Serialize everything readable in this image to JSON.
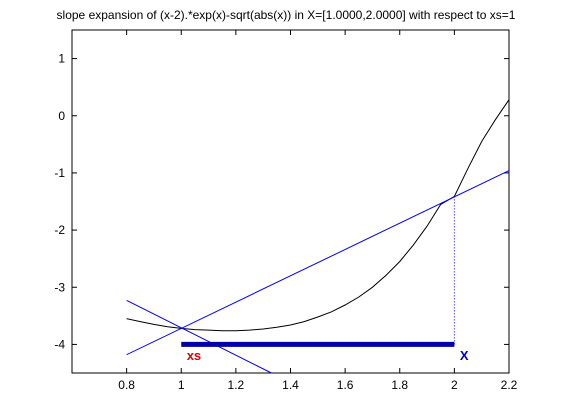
{
  "chart_data": {
    "type": "line",
    "title": "slope expansion of (x-2).*exp(x)-sqrt(abs(x)) in X=[1.0000,2.0000] with respect to xs=1",
    "xlabel": "",
    "ylabel": "",
    "xlim": [
      0.6,
      2.2
    ],
    "ylim": [
      -4.5,
      1.5
    ],
    "x_ticks": [
      0.8,
      1,
      1.2,
      1.4,
      1.6,
      1.8,
      2,
      2.2
    ],
    "x_tick_labels": [
      "0.8",
      "1",
      "1.2",
      "1.4",
      "1.6",
      "1.8",
      "2",
      "2.2"
    ],
    "y_ticks": [
      1,
      0,
      -1,
      -2,
      -3,
      -4
    ],
    "y_tick_labels": [
      "1",
      "0",
      "-1",
      "-2",
      "-3",
      "-4"
    ],
    "grid": false,
    "legend": "none",
    "series": [
      {
        "role": "function",
        "color": "#000000",
        "x": [
          0.8,
          0.85,
          0.9,
          0.95,
          1.0,
          1.05,
          1.1,
          1.15,
          1.2,
          1.25,
          1.3,
          1.35,
          1.4,
          1.45,
          1.5,
          1.55,
          1.6,
          1.65,
          1.7,
          1.75,
          1.8,
          1.85,
          1.9,
          1.95,
          2.0,
          2.05,
          2.1,
          2.15,
          2.2
        ],
        "y": [
          -3.55,
          -3.6,
          -3.65,
          -3.69,
          -3.72,
          -3.74,
          -3.75,
          -3.76,
          -3.76,
          -3.75,
          -3.73,
          -3.7,
          -3.66,
          -3.6,
          -3.52,
          -3.43,
          -3.31,
          -3.17,
          -3.0,
          -2.79,
          -2.55,
          -2.26,
          -1.93,
          -1.55,
          -1.41,
          -0.92,
          -0.45,
          -0.07,
          0.28
        ]
      },
      {
        "role": "upper-slope-line",
        "color": "#0000ff",
        "x": [
          0.8,
          2.2
        ],
        "y": [
          -4.18,
          -0.96
        ]
      },
      {
        "role": "lower-slope-line",
        "color": "#0000ff",
        "x": [
          0.8,
          1.33
        ],
        "y": [
          -3.23,
          -4.5
        ]
      }
    ],
    "interval": {
      "from": 1.0,
      "to": 2.0,
      "y": -4.0,
      "color": "#0000aa"
    },
    "guide_line": {
      "x": 2.0,
      "y_from": -4.0,
      "y_to": -1.41,
      "color": "#0000ff"
    },
    "annotations": [
      {
        "text": "xs",
        "x": 1.02,
        "y": -4.2,
        "color": "#dd0000"
      },
      {
        "text": "X",
        "x": 2.02,
        "y": -4.2,
        "color": "#0000cc"
      }
    ]
  }
}
